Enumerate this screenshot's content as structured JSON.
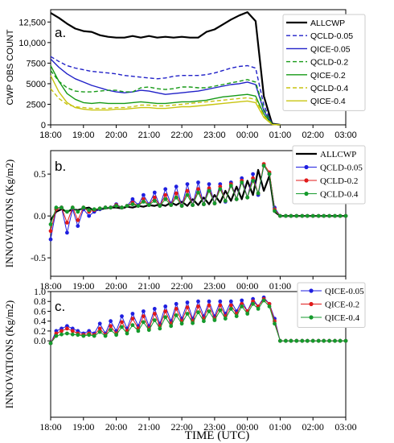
{
  "colors": {
    "allclwp": "#000000",
    "qcld_005": "#2020c8",
    "qice_005": "#2020c8",
    "qcld_02": "#169a16",
    "qice_02": "#169a16",
    "qcld_04": "#c8c410",
    "qice_04": "#c8c410",
    "blue": "#1f1fe0",
    "red": "#e01a1a",
    "green": "#159a2c"
  },
  "xlabel": "TIME (UTC)",
  "time_ticks": [
    "18:00",
    "19:00",
    "20:00",
    "21:00",
    "22:00",
    "23:00",
    "00:00",
    "01:00",
    "02:00",
    "03:00"
  ],
  "chart_data": [
    {
      "panel_label": "a.",
      "type": "line",
      "ylabel": "CWP OBS COUNT",
      "ylim": [
        0,
        14000
      ],
      "yticks": [
        0,
        2500,
        5000,
        7500,
        10000,
        12500
      ],
      "ytick_labels": [
        "0",
        "2500",
        "5000",
        "7500",
        "10,000",
        "12,500"
      ],
      "xlim": [
        0,
        9
      ],
      "legend_position": "top-right",
      "x": [
        0,
        0.25,
        0.5,
        0.75,
        1,
        1.25,
        1.5,
        1.75,
        2,
        2.25,
        2.5,
        2.75,
        3,
        3.25,
        3.5,
        3.75,
        4,
        4.25,
        4.5,
        4.75,
        5,
        5.25,
        5.5,
        5.75,
        6,
        6.25,
        6.5,
        6.75,
        7,
        7.25,
        7.5,
        7.75,
        8,
        8.25,
        8.5,
        8.75,
        9
      ],
      "series": [
        {
          "name": "ALLCWP",
          "style": "solid",
          "color_key": "allclwp",
          "width": 2.2,
          "values": [
            13600,
            13000,
            12300,
            11700,
            11400,
            11300,
            10900,
            10700,
            10600,
            10600,
            10800,
            10600,
            10800,
            10600,
            10700,
            10600,
            10700,
            10600,
            10600,
            11300,
            11600,
            12200,
            12800,
            13300,
            13700,
            12600,
            3500,
            150,
            0,
            null,
            null,
            null,
            null,
            null,
            null,
            null,
            null
          ]
        },
        {
          "name": "QCLD-0.05",
          "style": "dashed",
          "color_key": "qcld_005",
          "width": 1.4,
          "values": [
            8300,
            7700,
            7200,
            6900,
            6700,
            6500,
            6400,
            6300,
            6200,
            6000,
            5900,
            5800,
            5700,
            5600,
            5700,
            5900,
            6000,
            6000,
            6000,
            6100,
            6300,
            6600,
            6900,
            7100,
            7200,
            6900,
            2400,
            100,
            0,
            null,
            null,
            null,
            null,
            null,
            null,
            null,
            null
          ]
        },
        {
          "name": "QICE-0.05",
          "style": "solid",
          "color_key": "qice_005",
          "width": 1.4,
          "values": [
            8000,
            7000,
            6200,
            5600,
            5200,
            4800,
            4500,
            4200,
            4000,
            3900,
            4000,
            4200,
            4100,
            3900,
            3700,
            3800,
            3900,
            4000,
            4100,
            4300,
            4500,
            4700,
            4900,
            5000,
            5200,
            4900,
            1700,
            80,
            0,
            null,
            null,
            null,
            null,
            null,
            null,
            null,
            null
          ]
        },
        {
          "name": "QCLD-0.2",
          "style": "dashed",
          "color_key": "qcld_02",
          "width": 1.4,
          "values": [
            6600,
            5300,
            4500,
            4100,
            4000,
            4000,
            4100,
            4200,
            4200,
            4000,
            4000,
            4500,
            4600,
            4400,
            4300,
            4400,
            4600,
            4600,
            4500,
            4500,
            4700,
            4900,
            5100,
            5300,
            5500,
            5200,
            1900,
            90,
            0,
            null,
            null,
            null,
            null,
            null,
            null,
            null,
            null
          ]
        },
        {
          "name": "QICE-0.2",
          "style": "solid",
          "color_key": "qice_02",
          "width": 1.4,
          "values": [
            7200,
            5300,
            3800,
            3100,
            2700,
            2600,
            2700,
            2600,
            2600,
            2600,
            2700,
            2800,
            2700,
            2600,
            2600,
            2700,
            2800,
            2800,
            2900,
            3000,
            3200,
            3400,
            3500,
            3600,
            3700,
            3500,
            1300,
            70,
            0,
            null,
            null,
            null,
            null,
            null,
            null,
            null,
            null
          ]
        },
        {
          "name": "QCLD-0.4",
          "style": "dashed",
          "color_key": "qcld_04",
          "width": 1.4,
          "values": [
            4400,
            3200,
            2500,
            2200,
            2100,
            2000,
            2000,
            2000,
            2100,
            2100,
            2200,
            2400,
            2400,
            2300,
            2300,
            2400,
            2500,
            2600,
            2700,
            2800,
            2900,
            3000,
            3100,
            3200,
            3300,
            3100,
            1100,
            60,
            0,
            null,
            null,
            null,
            null,
            null,
            null,
            null,
            null
          ]
        },
        {
          "name": "QICE-0.4",
          "style": "solid",
          "color_key": "qice_04",
          "width": 1.4,
          "values": [
            6000,
            4000,
            2700,
            2100,
            1900,
            1800,
            1800,
            1800,
            1900,
            1900,
            2000,
            2100,
            2100,
            2000,
            2000,
            2100,
            2200,
            2200,
            2300,
            2400,
            2500,
            2600,
            2700,
            2800,
            2900,
            2700,
            900,
            50,
            0,
            null,
            null,
            null,
            null,
            null,
            null,
            null,
            null
          ]
        }
      ]
    },
    {
      "panel_label": "b.",
      "type": "line",
      "ylabel": "INNOVATIONS (Kg/m2)",
      "ylim": [
        -0.72,
        0.78
      ],
      "yticks": [
        -0.5,
        0.0,
        0.5
      ],
      "ytick_labels": [
        "-0.5",
        "0.0",
        "0.5"
      ],
      "xlim": [
        0,
        9
      ],
      "legend_position": "top-right",
      "x": [
        0,
        0.17,
        0.33,
        0.5,
        0.67,
        0.83,
        1,
        1.17,
        1.33,
        1.5,
        1.67,
        1.83,
        2,
        2.17,
        2.33,
        2.5,
        2.67,
        2.83,
        3,
        3.17,
        3.33,
        3.5,
        3.67,
        3.83,
        4,
        4.17,
        4.33,
        4.5,
        4.67,
        4.83,
        5,
        5.17,
        5.33,
        5.5,
        5.67,
        5.83,
        6,
        6.17,
        6.33,
        6.5,
        6.67,
        6.83,
        7,
        7.17,
        7.33,
        7.5,
        7.67,
        7.83,
        8,
        8.17,
        8.33,
        8.5,
        8.67,
        8.83,
        9
      ],
      "series": [
        {
          "name": "ALLCWP",
          "marker": "none",
          "color_key": "allclwp",
          "width": 2.2,
          "values": [
            -0.05,
            0.05,
            0.08,
            0.05,
            0.08,
            0.07,
            0.09,
            0.1,
            0.06,
            0.08,
            0.09,
            0.1,
            0.1,
            0.09,
            0.11,
            0.1,
            0.12,
            0.11,
            0.13,
            0.12,
            0.14,
            0.12,
            0.16,
            0.13,
            0.17,
            0.12,
            0.2,
            0.13,
            0.22,
            0.14,
            0.25,
            0.16,
            0.3,
            0.18,
            0.35,
            0.2,
            0.42,
            0.25,
            0.55,
            0.3,
            0.48,
            0.05,
            0.0,
            0.0,
            0.0,
            0.0,
            0.0,
            0.0,
            0.0,
            0.0,
            0.0,
            0.0,
            0.0,
            0.0,
            0.0
          ]
        },
        {
          "name": "QCLD-0.05",
          "marker": "dot",
          "color_key": "blue",
          "width": 1,
          "values": [
            -0.28,
            0.08,
            0.1,
            -0.2,
            0.08,
            -0.12,
            0.08,
            0.0,
            0.05,
            0.08,
            0.1,
            0.1,
            0.14,
            0.1,
            0.12,
            0.2,
            0.13,
            0.25,
            0.14,
            0.28,
            0.12,
            0.32,
            0.14,
            0.35,
            0.12,
            0.38,
            0.13,
            0.4,
            0.14,
            0.38,
            0.15,
            0.38,
            0.17,
            0.4,
            0.2,
            0.45,
            0.22,
            0.5,
            0.25,
            0.6,
            0.5,
            0.1,
            0.0,
            0.0,
            0.0,
            0.0,
            0.0,
            0.0,
            0.0,
            0.0,
            0.0,
            0.0,
            0.0,
            0.0,
            0.0
          ]
        },
        {
          "name": "QCLD-0.2",
          "marker": "dot",
          "color_key": "red",
          "width": 1,
          "values": [
            -0.18,
            0.08,
            0.1,
            -0.08,
            0.1,
            -0.05,
            0.1,
            0.05,
            0.07,
            0.09,
            0.1,
            0.1,
            0.13,
            0.1,
            0.12,
            0.16,
            0.12,
            0.2,
            0.13,
            0.22,
            0.12,
            0.25,
            0.13,
            0.27,
            0.12,
            0.3,
            0.13,
            0.32,
            0.14,
            0.33,
            0.15,
            0.35,
            0.18,
            0.38,
            0.2,
            0.42,
            0.22,
            0.45,
            0.27,
            0.62,
            0.52,
            0.08,
            0.0,
            0.0,
            0.0,
            0.0,
            0.0,
            0.0,
            0.0,
            0.0,
            0.0,
            0.0,
            0.0,
            0.0,
            0.0
          ]
        },
        {
          "name": "QCLD-0.4",
          "marker": "dot",
          "color_key": "green",
          "width": 1,
          "values": [
            -0.1,
            0.1,
            0.1,
            0.05,
            0.1,
            0.05,
            0.1,
            0.07,
            0.08,
            0.09,
            0.1,
            0.1,
            0.12,
            0.1,
            0.12,
            0.14,
            0.12,
            0.17,
            0.13,
            0.18,
            0.12,
            0.2,
            0.13,
            0.22,
            0.12,
            0.25,
            0.13,
            0.28,
            0.14,
            0.3,
            0.15,
            0.32,
            0.18,
            0.36,
            0.2,
            0.4,
            0.22,
            0.42,
            0.27,
            0.6,
            0.5,
            0.06,
            0.0,
            0.0,
            0.0,
            0.0,
            0.0,
            0.0,
            0.0,
            0.0,
            0.0,
            0.0,
            0.0,
            0.0,
            0.0
          ]
        }
      ]
    },
    {
      "panel_label": "c.",
      "type": "line",
      "ylabel": "INNOVATIONS (Kg/m2)",
      "ylim": [
        -1.55,
        1.0
      ],
      "yticks": [
        0.0,
        0.2,
        0.4,
        0.6,
        0.8,
        1.0
      ],
      "ytick_labels": [
        "0.0",
        "0.2",
        "0.4",
        "0.6",
        "0.8",
        "1.0"
      ],
      "xlim": [
        0,
        9
      ],
      "legend_position": "top-right",
      "x": [
        0,
        0.17,
        0.33,
        0.5,
        0.67,
        0.83,
        1,
        1.17,
        1.33,
        1.5,
        1.67,
        1.83,
        2,
        2.17,
        2.33,
        2.5,
        2.67,
        2.83,
        3,
        3.17,
        3.33,
        3.5,
        3.67,
        3.83,
        4,
        4.17,
        4.33,
        4.5,
        4.67,
        4.83,
        5,
        5.17,
        5.33,
        5.5,
        5.67,
        5.83,
        6,
        6.17,
        6.33,
        6.5,
        6.67,
        6.83,
        7,
        7.17,
        7.33,
        7.5,
        7.67,
        7.83,
        8,
        8.17,
        8.33,
        8.5,
        8.67,
        8.83,
        9
      ],
      "series": [
        {
          "name": "QICE-0.05",
          "marker": "dot",
          "color_key": "blue",
          "width": 1,
          "values": [
            -0.05,
            0.2,
            0.25,
            0.3,
            0.25,
            0.2,
            0.15,
            0.2,
            0.15,
            0.35,
            0.15,
            0.4,
            0.2,
            0.5,
            0.25,
            0.55,
            0.3,
            0.6,
            0.3,
            0.65,
            0.35,
            0.7,
            0.4,
            0.75,
            0.45,
            0.78,
            0.45,
            0.8,
            0.5,
            0.8,
            0.5,
            0.8,
            0.55,
            0.8,
            0.6,
            0.82,
            0.6,
            0.85,
            0.7,
            0.88,
            0.75,
            0.45,
            0.0,
            0.0,
            0.0,
            0.0,
            0.0,
            0.0,
            0.0,
            0.0,
            0.0,
            0.0,
            0.0,
            0.0,
            0.0
          ]
        },
        {
          "name": "QICE-0.2",
          "marker": "dot",
          "color_key": "red",
          "width": 1,
          "values": [
            -0.05,
            0.15,
            0.2,
            0.25,
            0.2,
            0.15,
            0.12,
            0.15,
            0.12,
            0.25,
            0.12,
            0.3,
            0.15,
            0.38,
            0.2,
            0.45,
            0.25,
            0.5,
            0.25,
            0.55,
            0.3,
            0.6,
            0.35,
            0.65,
            0.4,
            0.68,
            0.4,
            0.7,
            0.45,
            0.72,
            0.45,
            0.72,
            0.5,
            0.72,
            0.55,
            0.75,
            0.6,
            0.8,
            0.7,
            0.85,
            0.75,
            0.4,
            0.0,
            0.0,
            0.0,
            0.0,
            0.0,
            0.0,
            0.0,
            0.0,
            0.0,
            0.0,
            0.0,
            0.0,
            0.0
          ]
        },
        {
          "name": "QICE-0.4",
          "marker": "dot",
          "color_key": "green",
          "width": 1,
          "values": [
            -0.05,
            0.1,
            0.13,
            0.15,
            0.13,
            0.12,
            0.1,
            0.12,
            0.1,
            0.18,
            0.1,
            0.22,
            0.12,
            0.28,
            0.15,
            0.32,
            0.2,
            0.38,
            0.22,
            0.42,
            0.25,
            0.48,
            0.3,
            0.52,
            0.35,
            0.55,
            0.36,
            0.58,
            0.4,
            0.6,
            0.42,
            0.62,
            0.45,
            0.65,
            0.5,
            0.7,
            0.55,
            0.75,
            0.65,
            0.82,
            0.7,
            0.35,
            0.0,
            0.0,
            0.0,
            0.0,
            0.0,
            0.0,
            0.0,
            0.0,
            0.0,
            0.0,
            0.0,
            0.0,
            0.0
          ]
        }
      ]
    }
  ]
}
